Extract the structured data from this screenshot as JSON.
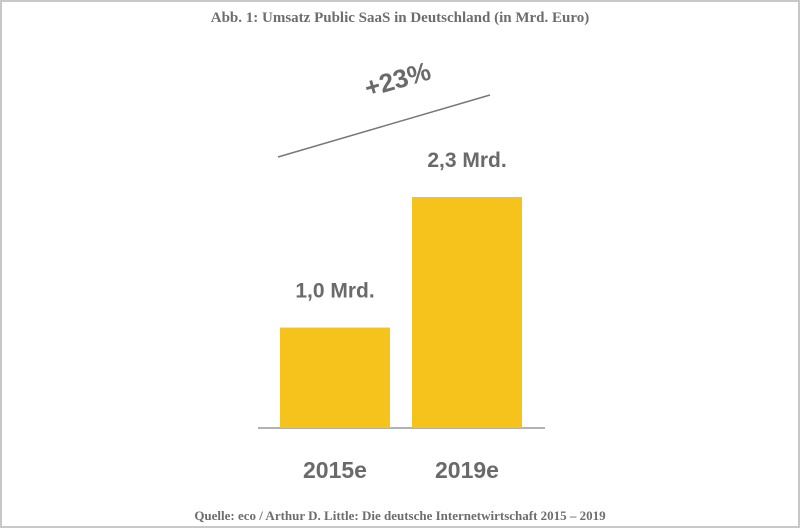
{
  "chart_data": {
    "type": "bar",
    "title": "Abb. 1: Umsatz Public SaaS in Deutschland (in Mrd. Euro)",
    "categories": [
      "2015e",
      "2019e"
    ],
    "values": [
      1.0,
      2.3
    ],
    "value_labels": [
      "1,0 Mrd.",
      "2,3 Mrd."
    ],
    "color": "#f6c31c",
    "annotation": "+23%",
    "source": "Quelle: eco / Arthur D. Little: Die deutsche Internetwirtschaft 2015 – 2019"
  }
}
